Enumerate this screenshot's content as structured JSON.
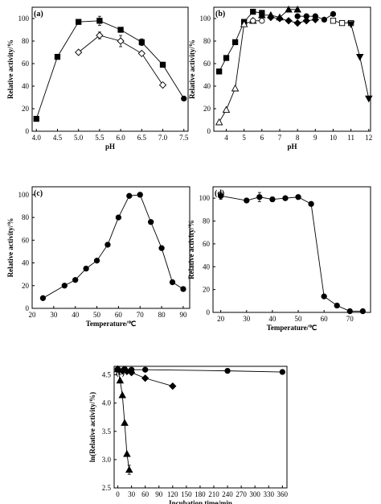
{
  "chart_data": [
    {
      "id": "a",
      "panel_label": "(a)",
      "type": "line",
      "xlabel": "pH",
      "ylabel": "Relative activity/%",
      "xlim": [
        3.9,
        7.6
      ],
      "ylim": [
        0,
        110
      ],
      "xticks": [
        4.0,
        4.5,
        5.0,
        5.5,
        6.0,
        6.5,
        7.0,
        7.5
      ],
      "xtick_labels": [
        "4.0",
        "4.5",
        "5.0",
        "5.5",
        "6.0",
        "6.5",
        "7.0",
        "7.5"
      ],
      "yticks": [
        0,
        20,
        40,
        60,
        80,
        100
      ],
      "ytick_labels": [
        "0",
        "20",
        "40",
        "60",
        "80",
        "100"
      ],
      "series": [
        {
          "marker": "square",
          "filled": true,
          "x": [
            4.0,
            4.5,
            5.0,
            5.5,
            6.0,
            6.5,
            7.0
          ],
          "y": [
            11,
            66,
            97,
            98,
            90,
            79,
            59
          ],
          "err": [
            0,
            0,
            0,
            4,
            2,
            3,
            0
          ]
        },
        {
          "marker": "diamond",
          "filled": false,
          "x": [
            5.0,
            5.5,
            6.0,
            6.5,
            7.0
          ],
          "y": [
            70,
            85,
            80,
            69,
            41
          ],
          "err": [
            0,
            3,
            5,
            0,
            0
          ]
        },
        {
          "marker": "circle",
          "filled": true,
          "x": [
            7.0,
            7.5
          ],
          "y": [
            59,
            29
          ],
          "err": [
            0,
            0
          ]
        }
      ]
    },
    {
      "id": "b",
      "panel_label": "(b)",
      "type": "line",
      "xlabel": "pH",
      "ylabel": "Relative activity/%",
      "xlim": [
        3.3,
        12.1
      ],
      "ylim": [
        0,
        110
      ],
      "xticks": [
        4,
        5,
        6,
        7,
        8,
        9,
        10,
        11,
        12
      ],
      "xtick_labels": [
        "4",
        "5",
        "6",
        "7",
        "8",
        "9",
        "10",
        "11",
        "12"
      ],
      "yticks": [
        0,
        20,
        40,
        60,
        80,
        100
      ],
      "ytick_labels": [
        "0",
        "20",
        "40",
        "60",
        "80",
        "100"
      ],
      "series": [
        {
          "marker": "square",
          "filled": true,
          "x": [
            3.6,
            4.0,
            4.5,
            5.0,
            5.5,
            6.0
          ],
          "y": [
            53,
            65,
            79,
            97,
            106,
            105
          ],
          "err": [
            0,
            0,
            0,
            0,
            0,
            0
          ]
        },
        {
          "marker": "triangle-up",
          "filled": false,
          "x": [
            3.6,
            4.0,
            4.5,
            5.0,
            5.5
          ],
          "y": [
            8,
            19,
            38,
            95,
            98
          ],
          "err": [
            0,
            0,
            0,
            0,
            0
          ]
        },
        {
          "marker": "circle",
          "filled": false,
          "x": [
            5.5,
            6.0
          ],
          "y": [
            98,
            98
          ],
          "err": [
            0,
            0
          ]
        },
        {
          "marker": "triangle-up",
          "filled": true,
          "x": [
            6.0,
            6.5,
            7.0,
            7.5,
            8.0
          ],
          "y": [
            103,
            103,
            101,
            108,
            108
          ],
          "err": [
            0,
            0,
            0,
            0,
            0
          ]
        },
        {
          "marker": "diamond",
          "filled": true,
          "x": [
            6.5,
            7.0,
            7.5,
            8.0,
            8.5,
            9.0
          ],
          "y": [
            101,
            100,
            98,
            96,
            98,
            99
          ],
          "err": [
            0,
            0,
            0,
            0,
            0,
            0
          ]
        },
        {
          "marker": "circle",
          "filled": true,
          "x": [
            8.0,
            8.5,
            9.0,
            9.5,
            10.0
          ],
          "y": [
            102,
            102,
            102,
            99,
            104
          ],
          "err": [
            0,
            0,
            0,
            0,
            0
          ]
        },
        {
          "marker": "square",
          "filled": false,
          "x": [
            10.0,
            10.5,
            11.0
          ],
          "y": [
            98,
            96,
            96
          ],
          "err": [
            0,
            0,
            0
          ]
        },
        {
          "marker": "triangle-down",
          "filled": true,
          "x": [
            11.0,
            11.5,
            12.0
          ],
          "y": [
            95,
            66,
            29
          ],
          "err": [
            0,
            0,
            0
          ]
        }
      ]
    },
    {
      "id": "c",
      "panel_label": "(c)",
      "type": "line",
      "xlabel": "Temperature/℃",
      "ylabel": "Relative activity/%",
      "xlim": [
        20,
        93
      ],
      "ylim": [
        0,
        107
      ],
      "xticks": [
        20,
        30,
        40,
        50,
        60,
        70,
        80,
        90
      ],
      "xtick_labels": [
        "20",
        "30",
        "40",
        "50",
        "60",
        "70",
        "80",
        "90"
      ],
      "yticks": [
        0,
        20,
        40,
        60,
        80,
        100
      ],
      "ytick_labels": [
        "0",
        "20",
        "40",
        "60",
        "80",
        "100"
      ],
      "series": [
        {
          "marker": "circle",
          "filled": true,
          "x": [
            25,
            35,
            40,
            45,
            50,
            55,
            60,
            65,
            70,
            75,
            80,
            85,
            90
          ],
          "y": [
            9,
            20,
            25,
            35,
            42,
            56,
            80,
            99,
            100,
            76,
            53,
            23,
            17
          ],
          "err": [
            0,
            0,
            0,
            0,
            0,
            0,
            0,
            0,
            2,
            0,
            0,
            0,
            0
          ]
        }
      ]
    },
    {
      "id": "d",
      "panel_label": "(d)",
      "type": "line",
      "xlabel": "Temperature/℃",
      "ylabel": "Relative activity/%",
      "xlim": [
        17,
        78
      ],
      "ylim": [
        0,
        110
      ],
      "xticks": [
        20,
        30,
        40,
        50,
        60,
        70
      ],
      "xtick_labels": [
        "20",
        "30",
        "40",
        "50",
        "60",
        "70"
      ],
      "yticks": [
        0,
        20,
        40,
        60,
        80,
        100
      ],
      "ytick_labels": [
        "0",
        "20",
        "40",
        "60",
        "80",
        "100"
      ],
      "series": [
        {
          "marker": "circle",
          "filled": true,
          "x": [
            20,
            30,
            35,
            40,
            45,
            50,
            55,
            60,
            65,
            70,
            75
          ],
          "y": [
            102,
            98,
            101,
            99,
            100,
            101,
            95,
            14,
            6,
            1,
            1
          ],
          "err": [
            3,
            0,
            4,
            2,
            0,
            2,
            2,
            0,
            0,
            0,
            0
          ]
        }
      ]
    },
    {
      "id": "e",
      "panel_label": "(e)",
      "type": "line",
      "xlabel": "Incubation time/min",
      "ylabel": "ln(Relative activity/%)",
      "xlim": [
        -8,
        370
      ],
      "ylim": [
        2.5,
        4.65
      ],
      "xticks": [
        0,
        30,
        60,
        90,
        120,
        150,
        180,
        210,
        240,
        270,
        300,
        330,
        360
      ],
      "xtick_labels": [
        "0",
        "30",
        "60",
        "90",
        "120",
        "150",
        "180",
        "210",
        "240",
        "270",
        "300",
        "330",
        "360"
      ],
      "yticks": [
        2.5,
        3.0,
        3.5,
        4.0,
        4.5
      ],
      "ytick_labels": [
        "2.5",
        "3.0",
        "3.5",
        "4.0",
        "4.5"
      ],
      "series": [
        {
          "marker": "circle",
          "filled": true,
          "x": [
            0,
            15,
            30,
            60,
            240,
            360
          ],
          "y": [
            4.6,
            4.6,
            4.59,
            4.59,
            4.57,
            4.55
          ],
          "err": [
            0,
            0,
            0,
            0,
            0,
            0
          ]
        },
        {
          "marker": "diamond",
          "filled": true,
          "x": [
            0,
            10,
            20,
            30,
            60,
            120
          ],
          "y": [
            4.6,
            4.57,
            4.56,
            4.54,
            4.44,
            4.3
          ],
          "err": [
            0,
            0,
            0,
            0,
            0,
            0
          ]
        },
        {
          "marker": "triangle-up",
          "filled": true,
          "x": [
            0,
            5,
            10,
            15,
            20,
            25
          ],
          "y": [
            4.6,
            4.4,
            4.14,
            3.65,
            3.1,
            2.82
          ],
          "err": [
            0,
            0,
            0,
            0,
            0,
            0.08
          ]
        }
      ]
    }
  ]
}
